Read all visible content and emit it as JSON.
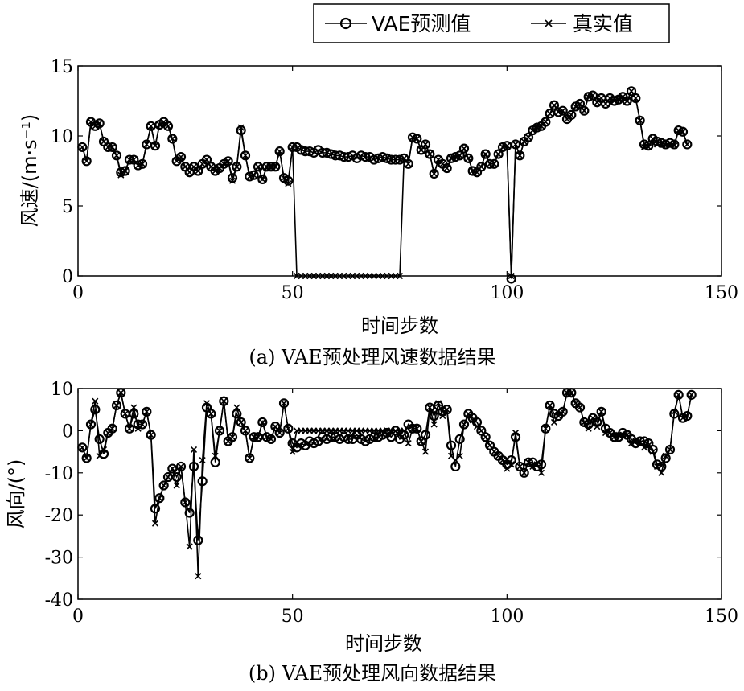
{
  "legend": {
    "items": [
      {
        "label": "VAE预测值",
        "marker": "circle"
      },
      {
        "label": "真实值",
        "marker": "x"
      }
    ]
  },
  "chart_data": [
    {
      "type": "line",
      "id": "speed",
      "caption": "(a) VAE预处理风速数据结果",
      "xlabel": "时间步数",
      "ylabel": "风速/(m·s⁻¹)",
      "xlim": [
        0,
        150
      ],
      "ylim": [
        0,
        15
      ],
      "xticks": [
        0,
        50,
        100,
        150
      ],
      "yticks": [
        0,
        5,
        10,
        15
      ],
      "x_start": 1,
      "series": [
        {
          "name": "VAE预测值",
          "marker": "circle",
          "values": [
            9.2,
            8.2,
            11.0,
            10.7,
            10.9,
            9.6,
            9.2,
            9.2,
            8.6,
            7.4,
            7.5,
            8.3,
            8.3,
            7.9,
            8.0,
            9.4,
            10.7,
            9.3,
            10.8,
            11.0,
            10.7,
            9.8,
            8.2,
            8.5,
            7.8,
            7.4,
            7.8,
            7.5,
            8.0,
            8.3,
            7.8,
            7.5,
            7.7,
            8.0,
            8.2,
            7.0,
            7.8,
            10.4,
            8.6,
            7.1,
            7.2,
            7.8,
            6.9,
            7.8,
            7.8,
            7.8,
            8.9,
            7.0,
            6.8,
            9.2,
            9.2,
            9.0,
            8.9,
            8.9,
            8.8,
            9.0,
            8.8,
            8.8,
            8.7,
            8.6,
            8.6,
            8.5,
            8.5,
            8.6,
            8.4,
            8.6,
            8.5,
            8.5,
            8.3,
            8.4,
            8.5,
            8.4,
            8.3,
            8.3,
            8.3,
            8.4,
            8.0,
            9.9,
            9.8,
            9.0,
            9.4,
            8.7,
            7.3,
            8.3,
            8.0,
            7.7,
            8.4,
            8.5,
            8.6,
            9.1,
            8.4,
            7.5,
            7.4,
            7.8,
            8.7,
            8.0,
            8.0,
            8.7,
            9.2,
            9.3,
            -0.2,
            9.4,
            8.6,
            9.6,
            9.9,
            10.4,
            10.6,
            10.7,
            11.0,
            11.6,
            12.2,
            11.7,
            11.8,
            11.2,
            11.5,
            12.1,
            12.3,
            11.8,
            12.8,
            12.9,
            12.4,
            12.7,
            12.3,
            12.7,
            12.5,
            12.6,
            12.8,
            12.5,
            13.2,
            12.7,
            11.1,
            9.4,
            9.3,
            9.8,
            9.6,
            9.5,
            9.4,
            9.5,
            9.4,
            10.4,
            10.3,
            9.4
          ]
        },
        {
          "name": "真实值",
          "marker": "x",
          "values": [
            9.2,
            8.2,
            11.0,
            10.7,
            10.9,
            9.6,
            9.2,
            9.2,
            8.6,
            7.2,
            7.5,
            8.3,
            8.3,
            7.9,
            8.0,
            9.4,
            10.7,
            9.3,
            10.8,
            11.0,
            10.7,
            9.8,
            8.2,
            8.5,
            7.8,
            7.4,
            7.8,
            7.5,
            8.0,
            8.3,
            7.8,
            7.5,
            7.7,
            8.0,
            8.2,
            6.8,
            7.8,
            10.6,
            8.6,
            7.1,
            7.2,
            7.8,
            6.9,
            7.8,
            7.8,
            7.8,
            8.9,
            7.0,
            6.6,
            9.2,
            0,
            0,
            0,
            0,
            0,
            0,
            0,
            0,
            0,
            0,
            0,
            0,
            0,
            0,
            0,
            0,
            0,
            0,
            0,
            0,
            0,
            0,
            0,
            0,
            0,
            8.4,
            8.0,
            9.9,
            9.8,
            9.0,
            9.4,
            8.7,
            7.3,
            8.3,
            8.0,
            7.7,
            8.4,
            8.5,
            8.6,
            9.1,
            8.4,
            7.5,
            7.4,
            7.8,
            8.7,
            8.0,
            8.0,
            8.7,
            9.2,
            9.3,
            0,
            9.4,
            8.6,
            9.6,
            9.9,
            10.4,
            10.6,
            10.7,
            11.0,
            11.6,
            12.2,
            11.7,
            11.8,
            11.2,
            11.5,
            12.1,
            12.3,
            11.8,
            12.8,
            12.9,
            12.4,
            12.7,
            12.3,
            12.7,
            12.5,
            12.6,
            12.8,
            12.5,
            13.2,
            12.7,
            11.1,
            9.2,
            9.2,
            9.8,
            9.4,
            9.4,
            9.3,
            9.3,
            9.3,
            10.4,
            10.3,
            9.4
          ]
        }
      ]
    },
    {
      "type": "line",
      "id": "direction",
      "caption": "(b) VAE预处理风向数据结果",
      "xlabel": "时间步数",
      "ylabel": "风向/(°)",
      "xlim": [
        0,
        150
      ],
      "ylim": [
        -40,
        10
      ],
      "xticks": [
        0,
        50,
        100,
        150
      ],
      "yticks": [
        -40,
        -30,
        -20,
        -10,
        0,
        10
      ],
      "x_start": 1,
      "series": [
        {
          "name": "VAE预测值",
          "marker": "circle",
          "values": [
            -4,
            -6.5,
            1.5,
            5,
            -2,
            -5.5,
            -0.5,
            0.5,
            6,
            9,
            4,
            0.5,
            4,
            1.5,
            1.5,
            4.5,
            -1,
            -18.5,
            -16,
            -13,
            -11,
            -9,
            -11,
            -8.5,
            -17,
            -19.5,
            -8.5,
            -26,
            -12,
            5.5,
            4,
            -7.5,
            0,
            7,
            -2.5,
            -1.5,
            4,
            2,
            0,
            -6.5,
            -1.5,
            -1.5,
            2,
            -1.5,
            -2,
            1,
            -0.5,
            6.5,
            0.5,
            -3,
            -4,
            -3,
            -3.5,
            -2.5,
            -3,
            -2.5,
            -1.5,
            -2,
            -1.5,
            -1.5,
            -2,
            -1.5,
            -2,
            -2,
            -1,
            -2,
            -2.5,
            -2,
            -1.5,
            -1.5,
            -1,
            -0.5,
            -1.5,
            0,
            -2,
            -1,
            1.5,
            0.5,
            0.5,
            -2.5,
            -1,
            5.5,
            3.5,
            6,
            4.5,
            5,
            -3.5,
            -8.5,
            -2,
            1.5,
            4,
            3,
            2,
            0,
            -1.5,
            -3.5,
            -5,
            -6,
            -7,
            -8,
            -7,
            -1.5,
            -8.5,
            -10,
            -7.5,
            -7.5,
            -8.5,
            -8,
            0.5,
            6,
            4,
            3.5,
            4.5,
            9,
            9,
            6.5,
            5.5,
            2,
            1.5,
            3,
            2,
            4.5,
            0.5,
            -0.5,
            -1.5,
            -1.5,
            -0.5,
            -1,
            -2,
            -3,
            -2.5,
            -2.5,
            -3,
            -4.5,
            -8,
            -8.5,
            -6.5,
            -4.5,
            4,
            8.5,
            3,
            3.5,
            8.5
          ]
        },
        {
          "name": "真实值",
          "marker": "x",
          "values": [
            -4,
            -6.5,
            1.5,
            7,
            -6,
            -4.5,
            -0.5,
            0.5,
            6,
            9,
            4,
            0.5,
            5.5,
            0.5,
            1.5,
            4.5,
            -1,
            -22,
            -16,
            -13,
            -11,
            -9,
            -13,
            -8.5,
            -17,
            -27.5,
            -4.5,
            -34.5,
            -7,
            6.5,
            4,
            -6,
            0,
            7,
            -2.5,
            -1.5,
            5.5,
            2,
            0,
            -6.5,
            -1.5,
            -1.5,
            2,
            -1.5,
            -2,
            1,
            -0.5,
            6.5,
            0.5,
            -5,
            0,
            0,
            0,
            0,
            0,
            0,
            0,
            0,
            0,
            0,
            0,
            0,
            0,
            0,
            0,
            0,
            0,
            0,
            0,
            0,
            0,
            0,
            0,
            0,
            0,
            0,
            -3,
            0.5,
            0.5,
            -2.5,
            -5,
            5.5,
            1.5,
            6.5,
            3.5,
            5,
            -6,
            -7,
            -6,
            1.5,
            4,
            2.5,
            1,
            0,
            -1.5,
            -3.5,
            -5,
            -6,
            -7,
            -9,
            -8,
            -0.5,
            -8.5,
            -10,
            -7.5,
            -8.5,
            -8,
            -10,
            0.5,
            6,
            2,
            3.5,
            4.5,
            9,
            9,
            6.5,
            5.5,
            2,
            0.5,
            3,
            1,
            4.5,
            -0.5,
            -0.5,
            -1.5,
            -1,
            -1,
            -1,
            -3,
            -2.5,
            -3,
            -4,
            -3.5,
            -5,
            -8.5,
            -10,
            -6,
            -4.5,
            4.5,
            8.5,
            3,
            3.5,
            8.5
          ]
        }
      ]
    }
  ]
}
